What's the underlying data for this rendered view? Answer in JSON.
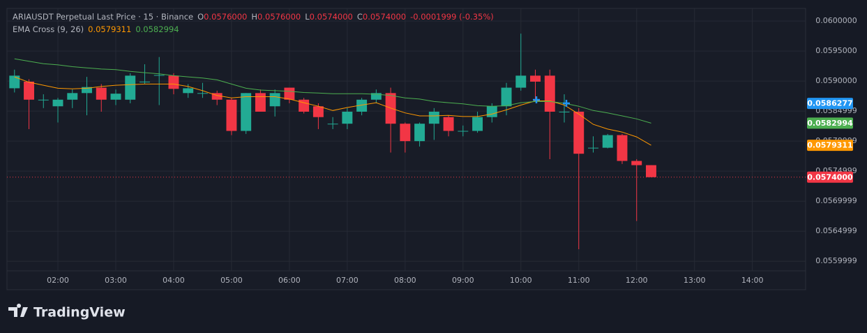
{
  "chart_data": {
    "type": "candlestick",
    "title": "ARIAUSDT Perpetual Last Price · 15 · Binance",
    "ohlc_legend": [
      {
        "label": "O",
        "value": "0.0576000"
      },
      {
        "label": "H",
        "value": "0.0576000"
      },
      {
        "label": "L",
        "value": "0.0574000"
      },
      {
        "label": "C",
        "value": "0.0574000"
      }
    ],
    "change": "-0.0001999 (-0.35%)",
    "indicator": "EMA Cross (9, 26)",
    "x": [
      1.25,
      1.5,
      1.75,
      2,
      2.25,
      2.5,
      2.75,
      3,
      3.25,
      3.5,
      3.75,
      4,
      4.25,
      4.5,
      4.75,
      5,
      5.25,
      5.5,
      5.75,
      6,
      6.25,
      6.5,
      6.75,
      7,
      7.25,
      7.5,
      7.75,
      8,
      8.25,
      8.5,
      8.75,
      9,
      9.25,
      9.5,
      9.75,
      10,
      10.25,
      10.5,
      10.75,
      11,
      11.25,
      11.5,
      11.75,
      12,
      12.25
    ],
    "open": [
      0.05888,
      0.05899,
      0.05869,
      0.05858,
      0.05869,
      0.0588,
      0.05889,
      0.05869,
      0.05869,
      0.05899,
      0.05909,
      0.05909,
      0.0588,
      0.0588,
      0.0588,
      0.05869,
      0.05817,
      0.0588,
      0.05858,
      0.05889,
      0.05869,
      0.05858,
      0.05829,
      0.05829,
      0.05849,
      0.05869,
      0.0588,
      0.05829,
      0.058,
      0.05829,
      0.0584,
      0.05817,
      0.05817,
      0.0584,
      0.05858,
      0.05889,
      0.05909,
      0.05909,
      0.05849,
      0.05849,
      0.05789,
      0.05789,
      0.0581,
      0.05767,
      0.0576
    ],
    "high": [
      0.05919,
      0.05903,
      0.05878,
      0.05872,
      0.05886,
      0.05907,
      0.05895,
      0.05886,
      0.05913,
      0.05928,
      0.0594,
      0.05913,
      0.05895,
      0.05897,
      0.05884,
      0.05872,
      0.0588,
      0.05886,
      0.05886,
      0.05889,
      0.05872,
      0.05863,
      0.0584,
      0.05855,
      0.05872,
      0.05886,
      0.05889,
      0.05831,
      0.05831,
      0.05855,
      0.05843,
      0.05826,
      0.05849,
      0.05863,
      0.05897,
      0.05979,
      0.05919,
      0.05919,
      0.05878,
      0.05855,
      0.05808,
      0.05812,
      0.05812,
      0.0577,
      0.0576
    ],
    "low": [
      0.05881,
      0.0582,
      0.05855,
      0.05831,
      0.05855,
      0.05843,
      0.05849,
      0.0586,
      0.05863,
      0.05895,
      0.0586,
      0.05878,
      0.05872,
      0.05872,
      0.0586,
      0.0581,
      0.05812,
      0.05849,
      0.05841,
      0.05863,
      0.05846,
      0.0582,
      0.0582,
      0.0582,
      0.05843,
      0.05863,
      0.05781,
      0.05781,
      0.05791,
      0.05802,
      0.05808,
      0.05808,
      0.05814,
      0.05831,
      0.05843,
      0.05884,
      0.05866,
      0.0577,
      0.05831,
      0.0562,
      0.05781,
      0.05788,
      0.05762,
      0.05667,
      0.0574
    ],
    "close": [
      0.05909,
      0.05869,
      0.05869,
      0.05869,
      0.0588,
      0.0589,
      0.05869,
      0.05879,
      0.05909,
      0.05899,
      0.0591,
      0.05887,
      0.05888,
      0.0588,
      0.05869,
      0.05817,
      0.0588,
      0.05849,
      0.0588,
      0.05869,
      0.05849,
      0.0584,
      0.05829,
      0.05849,
      0.05869,
      0.0588,
      0.05829,
      0.058,
      0.05829,
      0.05849,
      0.05817,
      0.05817,
      0.0584,
      0.05858,
      0.05889,
      0.05909,
      0.05899,
      0.05849,
      0.05849,
      0.05779,
      0.05789,
      0.0581,
      0.05767,
      0.0576,
      0.0574
    ],
    "up_color": "#22ab94",
    "down_color": "#f23645",
    "series": [
      {
        "color": "#ff9800",
        "last_value_label": "0.0579311",
        "values": [
          0.05907,
          0.05898,
          0.05893,
          0.05888,
          0.05887,
          0.05888,
          0.05891,
          0.05893,
          0.05894,
          0.05895,
          0.05895,
          0.05895,
          0.05891,
          0.05884,
          0.05876,
          0.05872,
          0.05874,
          0.05874,
          0.05874,
          0.0587,
          0.05864,
          0.05858,
          0.05851,
          0.05856,
          0.0586,
          0.05864,
          0.05855,
          0.05847,
          0.05842,
          0.05842,
          0.05843,
          0.05841,
          0.05841,
          0.05845,
          0.05852,
          0.0586,
          0.05867,
          0.05867,
          0.0586,
          0.05845,
          0.05828,
          0.0582,
          0.05815,
          0.05807,
          0.0579311
        ]
      },
      {
        "color": "#4caf50",
        "last_value_label": "0.0582994",
        "values": [
          0.05937,
          0.05933,
          0.05929,
          0.05927,
          0.05924,
          0.05922,
          0.0592,
          0.05919,
          0.05916,
          0.05914,
          0.05912,
          0.05909,
          0.05907,
          0.05905,
          0.05902,
          0.05895,
          0.05888,
          0.05885,
          0.05884,
          0.05883,
          0.05881,
          0.0588,
          0.05879,
          0.05879,
          0.05879,
          0.05878,
          0.05876,
          0.05872,
          0.0587,
          0.05866,
          0.05864,
          0.05862,
          0.05859,
          0.05858,
          0.05859,
          0.05864,
          0.05866,
          0.05866,
          0.05863,
          0.05858,
          0.05851,
          0.05847,
          0.05842,
          0.05837,
          0.0582994
        ]
      }
    ],
    "price_marker": {
      "value": 0.0586277,
      "label": "0.0586277",
      "color": "#2196f3"
    },
    "last_price": {
      "value": 0.0574,
      "label": "0.0574000",
      "color": "#f23645"
    },
    "xlim": [
      1.12,
      14.92
    ],
    "xticks": [
      {
        "value": 2,
        "label": "02:00"
      },
      {
        "value": 3,
        "label": "03:00"
      },
      {
        "value": 4,
        "label": "04:00"
      },
      {
        "value": 5,
        "label": "05:00"
      },
      {
        "value": 6,
        "label": "06:00"
      },
      {
        "value": 7,
        "label": "07:00"
      },
      {
        "value": 8,
        "label": "08:00"
      },
      {
        "value": 9,
        "label": "09:00"
      },
      {
        "value": 10,
        "label": "10:00"
      },
      {
        "value": 11,
        "label": "11:00"
      },
      {
        "value": 12,
        "label": "12:00"
      },
      {
        "value": 13,
        "label": "13:00"
      },
      {
        "value": 14,
        "label": "14:00"
      }
    ],
    "ylim": [
      0.05584,
      0.06021
    ],
    "yticks": [
      {
        "value": 0.06,
        "label": "0.0600000"
      },
      {
        "value": 0.0595,
        "label": "0.0595000"
      },
      {
        "value": 0.059,
        "label": "0.0590000"
      },
      0.0584999,
      0.0579999,
      0.0574999,
      0.0569999,
      0.0564999,
      0.0559999
    ],
    "grid": true
  },
  "brand": "TradingView"
}
